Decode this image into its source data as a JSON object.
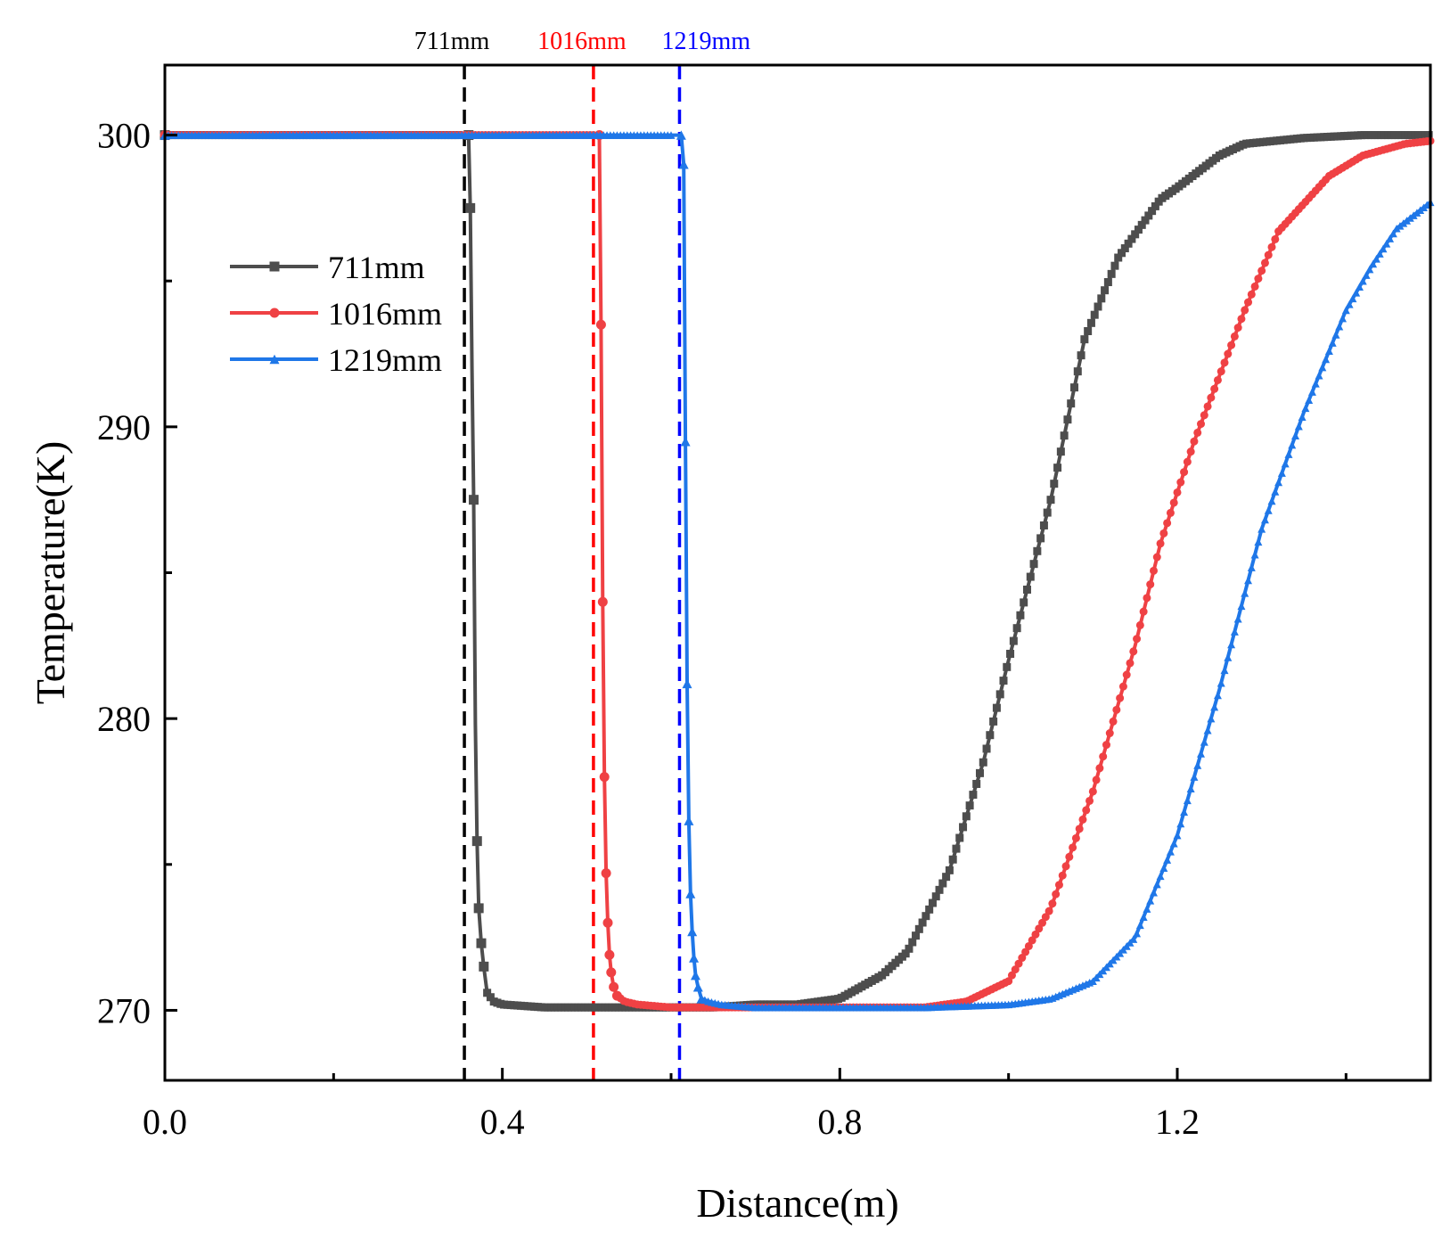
{
  "chart_data": {
    "type": "line",
    "title": "",
    "xlabel": "Distance(m)",
    "ylabel": "Temperature(K)",
    "xlim": [
      0.0,
      1.5
    ],
    "ylim": [
      267.6,
      302.4
    ],
    "x_ticks": [
      0.0,
      0.4,
      0.8,
      1.2
    ],
    "x_tick_labels": [
      "0.0",
      "0.4",
      "0.8",
      "1.2"
    ],
    "x_minor_ticks": [
      0.2,
      0.6,
      1.0,
      1.4
    ],
    "y_ticks": [
      270,
      280,
      290,
      300
    ],
    "y_tick_labels": [
      "270",
      "280",
      "290",
      "300"
    ],
    "y_minor_ticks": [
      275,
      285,
      295
    ],
    "legend_position": "upper-left",
    "series": [
      {
        "name": "711mm",
        "color": "#4d4d4d",
        "marker": "square",
        "vline": 0.355,
        "vline_label": "711mm",
        "vline_color": "#000000",
        "x": [
          0.0,
          0.35,
          0.36,
          0.362,
          0.364,
          0.366,
          0.368,
          0.37,
          0.372,
          0.375,
          0.378,
          0.382,
          0.39,
          0.4,
          0.45,
          0.55,
          0.65,
          0.7,
          0.75,
          0.8,
          0.85,
          0.88,
          0.93,
          0.97,
          1.0,
          1.05,
          1.09,
          1.13,
          1.18,
          1.2,
          1.25,
          1.28,
          1.35,
          1.42,
          1.5
        ],
        "y": [
          300.0,
          300.0,
          300.0,
          297.5,
          292.0,
          287.5,
          279.8,
          275.8,
          273.5,
          272.3,
          271.5,
          270.6,
          270.3,
          270.2,
          270.1,
          270.1,
          270.1,
          270.2,
          270.2,
          270.4,
          271.2,
          272.0,
          274.8,
          278.5,
          282.0,
          287.5,
          293.0,
          295.8,
          297.8,
          298.2,
          299.3,
          299.7,
          299.9,
          300.0,
          300.0
        ],
        "markers": [
          0.0,
          0.36,
          0.362,
          0.366,
          0.37,
          0.372,
          0.375,
          0.378
        ]
      },
      {
        "name": "1016mm",
        "color": "#ef4144",
        "marker": "circle",
        "vline": 0.508,
        "vline_label": "1016mm",
        "vline_color": "#ff0000",
        "x": [
          0.0,
          0.51,
          0.515,
          0.517,
          0.519,
          0.521,
          0.523,
          0.525,
          0.527,
          0.529,
          0.532,
          0.536,
          0.545,
          0.56,
          0.6,
          0.7,
          0.8,
          0.9,
          0.95,
          1.0,
          1.05,
          1.1,
          1.15,
          1.18,
          1.22,
          1.28,
          1.32,
          1.38,
          1.42,
          1.47,
          1.5
        ],
        "y": [
          300.0,
          300.0,
          300.0,
          293.5,
          284.0,
          278.0,
          274.7,
          273.0,
          271.9,
          271.3,
          270.8,
          270.5,
          270.3,
          270.2,
          270.1,
          270.1,
          270.1,
          270.1,
          270.3,
          271.0,
          273.5,
          277.5,
          282.5,
          286.0,
          289.5,
          294.0,
          296.7,
          298.6,
          299.3,
          299.7,
          299.8
        ],
        "markers": [
          0.0,
          0.515,
          0.517,
          0.519,
          0.521,
          0.523,
          0.525,
          0.527,
          0.529,
          0.532,
          0.536
        ]
      },
      {
        "name": "1219mm",
        "color": "#1f77e8",
        "marker": "triangle",
        "vline": 0.61,
        "vline_label": "1219mm",
        "vline_color": "#0000ff",
        "x": [
          0.0,
          0.6,
          0.612,
          0.615,
          0.617,
          0.619,
          0.621,
          0.623,
          0.625,
          0.627,
          0.629,
          0.632,
          0.636,
          0.645,
          0.66,
          0.7,
          0.8,
          0.9,
          1.0,
          1.05,
          1.1,
          1.15,
          1.2,
          1.25,
          1.3,
          1.35,
          1.4,
          1.43,
          1.46,
          1.5
        ],
        "y": [
          300.0,
          300.0,
          300.0,
          299.0,
          289.5,
          281.2,
          276.5,
          274.0,
          272.7,
          271.8,
          271.2,
          270.8,
          270.4,
          270.3,
          270.2,
          270.1,
          270.1,
          270.1,
          270.2,
          270.4,
          271.0,
          272.5,
          276.0,
          281.0,
          286.5,
          290.5,
          294.0,
          295.5,
          296.8,
          297.7
        ],
        "markers": [
          0.0,
          0.612,
          0.615,
          0.617,
          0.619,
          0.621,
          0.623,
          0.625,
          0.627,
          0.629,
          0.632,
          0.636
        ]
      }
    ]
  }
}
